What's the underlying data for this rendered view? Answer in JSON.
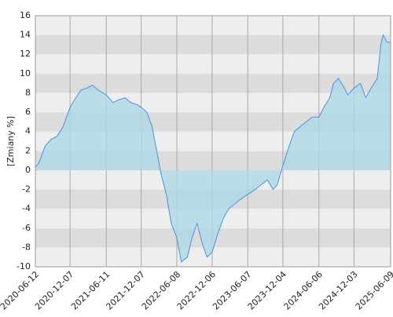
{
  "chart_data": {
    "type": "area",
    "ylabel": "[Zmiany %]",
    "x": [
      "2020-06-12",
      "2020-07-01",
      "2020-08-01",
      "2020-09-01",
      "2020-10-01",
      "2020-11-01",
      "2020-12-07",
      "2021-01-05",
      "2021-02-01",
      "2021-03-01",
      "2021-04-01",
      "2021-05-01",
      "2021-06-11",
      "2021-07-15",
      "2021-08-15",
      "2021-09-15",
      "2021-10-15",
      "2021-11-15",
      "2021-12-07",
      "2022-01-05",
      "2022-02-01",
      "2022-03-01",
      "2022-03-20",
      "2022-04-15",
      "2022-05-10",
      "2022-06-08",
      "2022-07-01",
      "2022-08-01",
      "2022-08-25",
      "2022-09-20",
      "2022-10-15",
      "2022-11-10",
      "2022-12-06",
      "2023-01-05",
      "2023-02-01",
      "2023-03-01",
      "2023-04-01",
      "2023-05-01",
      "2023-06-07",
      "2023-07-15",
      "2023-08-15",
      "2023-09-15",
      "2023-10-15",
      "2023-11-05",
      "2023-12-04",
      "2024-01-05",
      "2024-02-01",
      "2024-03-01",
      "2024-04-01",
      "2024-05-01",
      "2024-06-06",
      "2024-07-01",
      "2024-08-01",
      "2024-08-20",
      "2024-09-15",
      "2024-10-15",
      "2024-11-01",
      "2024-12-03",
      "2025-01-05",
      "2025-02-01",
      "2025-03-01",
      "2025-04-01",
      "2025-04-20",
      "2025-05-01",
      "2025-05-20",
      "2025-06-09"
    ],
    "values": [
      0.3,
      0.8,
      2.5,
      3.2,
      3.5,
      4.5,
      6.5,
      7.5,
      8.3,
      8.5,
      8.8,
      8.3,
      7.8,
      7.0,
      7.3,
      7.5,
      7.0,
      6.8,
      6.5,
      6.0,
      4.5,
      1.5,
      -0.5,
      -2.5,
      -5.5,
      -7.0,
      -9.5,
      -9.0,
      -7.0,
      -5.5,
      -7.5,
      -9.0,
      -8.5,
      -6.5,
      -5.0,
      -4.0,
      -3.5,
      -3.0,
      -2.5,
      -2.0,
      -1.5,
      -1.0,
      -2.0,
      -1.5,
      0.5,
      2.5,
      4.0,
      4.5,
      5.0,
      5.5,
      5.5,
      6.5,
      7.5,
      9.0,
      9.5,
      8.5,
      7.8,
      8.5,
      9.0,
      7.5,
      8.5,
      9.5,
      13.0,
      14.0,
      13.3,
      13.2
    ],
    "color": "#4a90e2",
    "fill": "#add8e6",
    "xlim": [
      "2020-06-12",
      "2025-06-09"
    ],
    "xticks": [
      "2020-06-12",
      "2020-12-07",
      "2021-06-11",
      "2021-12-07",
      "2022-06-08",
      "2022-12-06",
      "2023-06-07",
      "2023-12-04",
      "2024-06-06",
      "2024-12-03",
      "2025-06-09"
    ],
    "ylim": [
      -10,
      16
    ],
    "yticks": [
      -10,
      -8,
      -6,
      -4,
      -2,
      0,
      2,
      4,
      6,
      8,
      10,
      12,
      14,
      16
    ],
    "grid": true
  }
}
